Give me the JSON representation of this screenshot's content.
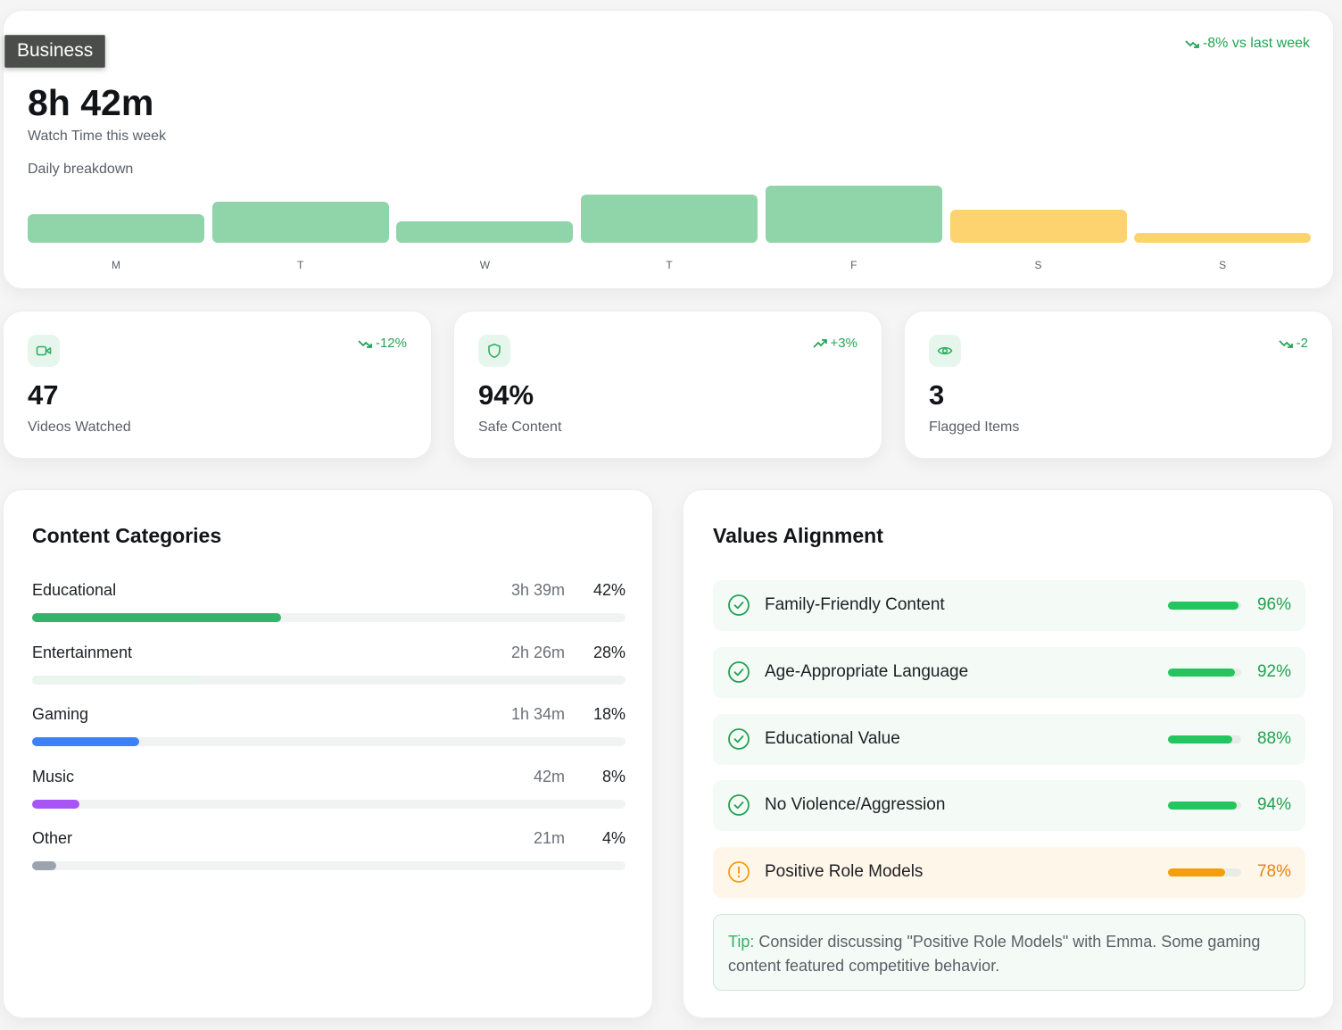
{
  "tooltip": "Business",
  "watch": {
    "total": "8h 42m",
    "label": "Watch Time this week",
    "trend": "-8% vs last week",
    "daily_label": "Daily breakdown",
    "days": [
      {
        "day": "M",
        "level": 0.5,
        "color": "#90d4aa"
      },
      {
        "day": "T",
        "level": 0.72,
        "color": "#90d4aa"
      },
      {
        "day": "W",
        "level": 0.38,
        "color": "#90d4aa"
      },
      {
        "day": "T",
        "level": 0.85,
        "color": "#90d4aa"
      },
      {
        "day": "F",
        "level": 1.0,
        "color": "#90d4aa"
      },
      {
        "day": "S",
        "level": 0.58,
        "color": "#fcd36e"
      },
      {
        "day": "S",
        "level": 0.17,
        "color": "#fcd36e"
      }
    ]
  },
  "stats": [
    {
      "icon": "video-icon",
      "value": "47",
      "label": "Videos Watched",
      "trend": "-12%",
      "direction": "down"
    },
    {
      "icon": "shield-icon",
      "value": "94%",
      "label": "Safe Content",
      "trend": "+3%",
      "direction": "up"
    },
    {
      "icon": "eye-icon",
      "value": "3",
      "label": "Flagged Items",
      "trend": "-2",
      "direction": "down"
    }
  ],
  "categories": {
    "title": "Content Categories",
    "items": [
      {
        "name": "Educational",
        "time": "3h 39m",
        "pct": "42%",
        "fill": 0.42,
        "color": "#33b36b"
      },
      {
        "name": "Entertainment",
        "time": "2h 26m",
        "pct": "28%",
        "fill": 0.28,
        "color": "#e9f5ee"
      },
      {
        "name": "Gaming",
        "time": "1h 34m",
        "pct": "18%",
        "fill": 0.18,
        "color": "#3b82f6"
      },
      {
        "name": "Music",
        "time": "42m",
        "pct": "8%",
        "fill": 0.08,
        "color": "#a855f7"
      },
      {
        "name": "Other",
        "time": "21m",
        "pct": "4%",
        "fill": 0.04,
        "color": "#9ca3af"
      }
    ]
  },
  "values": {
    "title": "Values Alignment",
    "items": [
      {
        "name": "Family-Friendly Content",
        "pct": "96%",
        "fill": 0.96,
        "status": "ok"
      },
      {
        "name": "Age-Appropriate Language",
        "pct": "92%",
        "fill": 0.92,
        "status": "ok"
      },
      {
        "name": "Educational Value",
        "pct": "88%",
        "fill": 0.88,
        "status": "ok"
      },
      {
        "name": "No Violence/Aggression",
        "pct": "94%",
        "fill": 0.94,
        "status": "ok"
      },
      {
        "name": "Positive Role Models",
        "pct": "78%",
        "fill": 0.78,
        "status": "warn"
      }
    ],
    "tip_label": "Tip:",
    "tip_text": "Consider discussing \"Positive Role Models\" with Emma. Some gaming content featured competitive behavior."
  },
  "colors": {
    "accent_green": "#22a052",
    "warn_orange": "#f59e0b",
    "bar_green": "#22c55e"
  }
}
